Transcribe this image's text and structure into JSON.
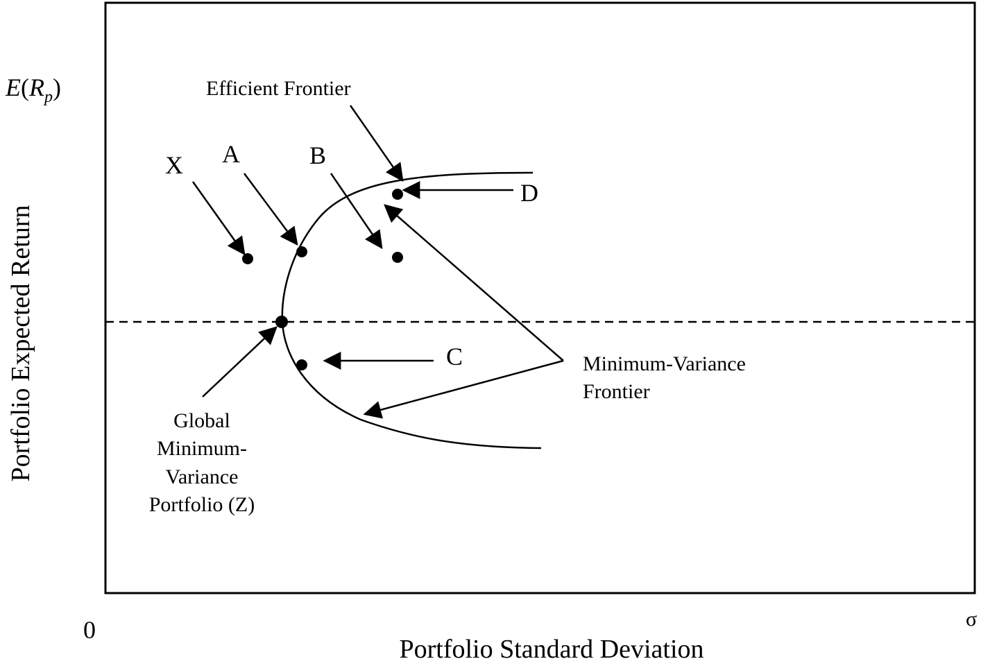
{
  "y_axis": {
    "symbol_italic_e": "E",
    "symbol_open": "(",
    "symbol_italic_r": "R",
    "symbol_sub": "p",
    "symbol_close": ")",
    "title": "Portfolio Expected Return"
  },
  "x_axis": {
    "origin": "0",
    "symbol": "σ",
    "title": "Portfolio Standard Deviation"
  },
  "labels": {
    "efficient_frontier": "Efficient Frontier",
    "x": "X",
    "a": "A",
    "b": "B",
    "c": "C",
    "d": "D",
    "mvf_line1": "Minimum-Variance",
    "mvf_line2": "Frontier",
    "gmv_line1": "Global",
    "gmv_line2": "Minimum-",
    "gmv_line3": "Variance",
    "gmv_line4": "Portfolio (Z)"
  },
  "colors": {
    "ink": "#000000",
    "background": "#ffffff"
  }
}
